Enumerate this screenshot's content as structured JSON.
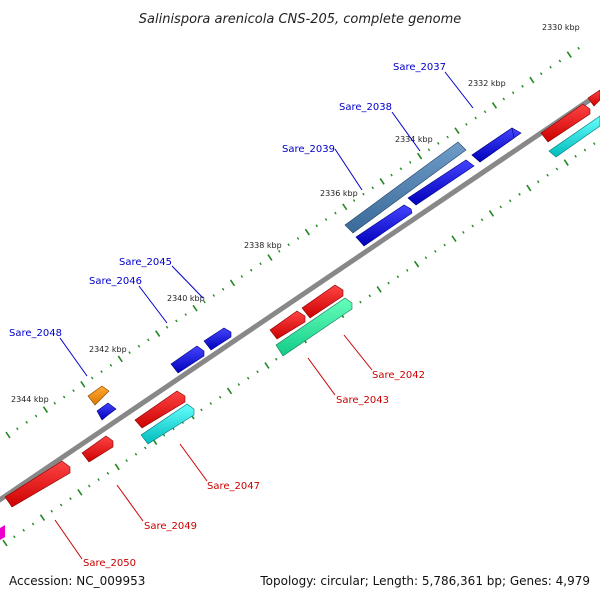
{
  "title": "Salinispora arenicola CNS-205, complete genome",
  "footer": {
    "accession": "Accession: NC_009953",
    "stats": "Topology: circular; Length: 5,786,361 bp; Genes: 4,979"
  },
  "kbp_labels": [
    "2330 kbp",
    "2332 kbp",
    "2334 kbp",
    "2336 kbp",
    "2338 kbp",
    "2340 kbp",
    "2342 kbp",
    "2344 kbp"
  ],
  "genes_forward": [
    {
      "name": "Sare_2037",
      "color": "#0000ee"
    },
    {
      "name": "Sare_2038",
      "color": "#0000ee"
    },
    {
      "name": "Sare_2039",
      "color": "#0000ee"
    },
    {
      "name": "Sare_2045",
      "color": "#0000ee"
    },
    {
      "name": "Sare_2046",
      "color": "#0000ee"
    },
    {
      "name": "Sare_2048",
      "color": "#0000ee"
    }
  ],
  "genes_reverse": [
    {
      "name": "Sare_2042",
      "color": "#ee0000"
    },
    {
      "name": "Sare_2043",
      "color": "#ee0000"
    },
    {
      "name": "Sare_2047",
      "color": "#ee0000"
    },
    {
      "name": "Sare_2049",
      "color": "#ee0000"
    },
    {
      "name": "Sare_2050",
      "color": "#ee0000"
    }
  ],
  "colors": {
    "forward_gene": "#0000ee",
    "reverse_gene": "#ee0000",
    "cyan_feature": "#00dddd",
    "teal_feature": "#22ee99",
    "orange_feature": "#ee8800",
    "magenta_feature": "#ee00cc",
    "tick": "#228822",
    "backbone": "#888888"
  }
}
